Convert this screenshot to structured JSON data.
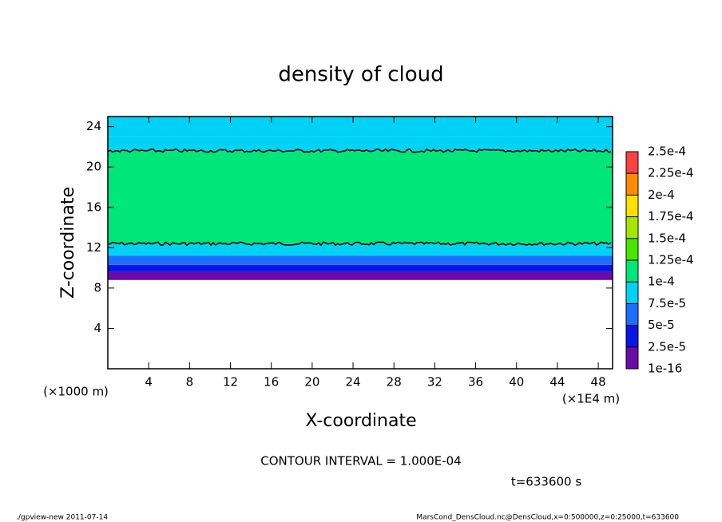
{
  "chart_data": {
    "type": "contour",
    "title": "density of cloud",
    "xlabel": "X-coordinate",
    "ylabel": "Z-coordinate",
    "xunit": "(×1E4 m)",
    "yunit": "(×1000 m)",
    "xlim": [
      0,
      49.4
    ],
    "ylim": [
      0,
      25
    ],
    "xticks": [
      4,
      8,
      12,
      16,
      20,
      24,
      28,
      32,
      36,
      40,
      44,
      48
    ],
    "yticks": [
      4,
      8,
      12,
      16,
      20,
      24
    ],
    "z_edges": [
      0,
      8.8,
      9.6,
      10.3,
      11.2,
      12.4,
      21.6,
      23,
      25
    ],
    "values": [
      null,
      1.2e-05,
      3.5e-05,
      6e-05,
      8.5e-05,
      0.00011,
      9.5e-05,
      8.5e-05
    ],
    "contour_interval": 0.0001,
    "colorbar": {
      "ticks": [
        {
          "value": 1e-16,
          "label": "1e-16"
        },
        {
          "value": 2.5e-05,
          "label": "2.5e-5"
        },
        {
          "value": 5e-05,
          "label": "5e-5"
        },
        {
          "value": 7.5e-05,
          "label": "7.5e-5"
        },
        {
          "value": 0.0001,
          "label": "1e-4"
        },
        {
          "value": 0.000125,
          "label": "1.25e-4"
        },
        {
          "value": 0.00015,
          "label": "1.5e-4"
        },
        {
          "value": 0.000175,
          "label": "1.75e-4"
        },
        {
          "value": 0.0002,
          "label": "2e-4"
        },
        {
          "value": 0.000225,
          "label": "2.25e-4"
        },
        {
          "value": 0.00025,
          "label": "2.5e-4"
        }
      ],
      "colors": [
        "#6a0aa8",
        "#0a14e6",
        "#1e6eff",
        "#00d2f5",
        "#00e678",
        "#46e600",
        "#a6e600",
        "#ffe000",
        "#ff8c00",
        "#ff4040"
      ]
    },
    "contour_text": "CONTOUR INTERVAL = 1.000E-04",
    "time_text": "t=633600 s",
    "footer_left": "./gpview-new   2011-07-14",
    "footer_right": "MarsCond_DensCloud.nc@DensCloud,x=0:500000,z=0:25000,t=633600"
  }
}
